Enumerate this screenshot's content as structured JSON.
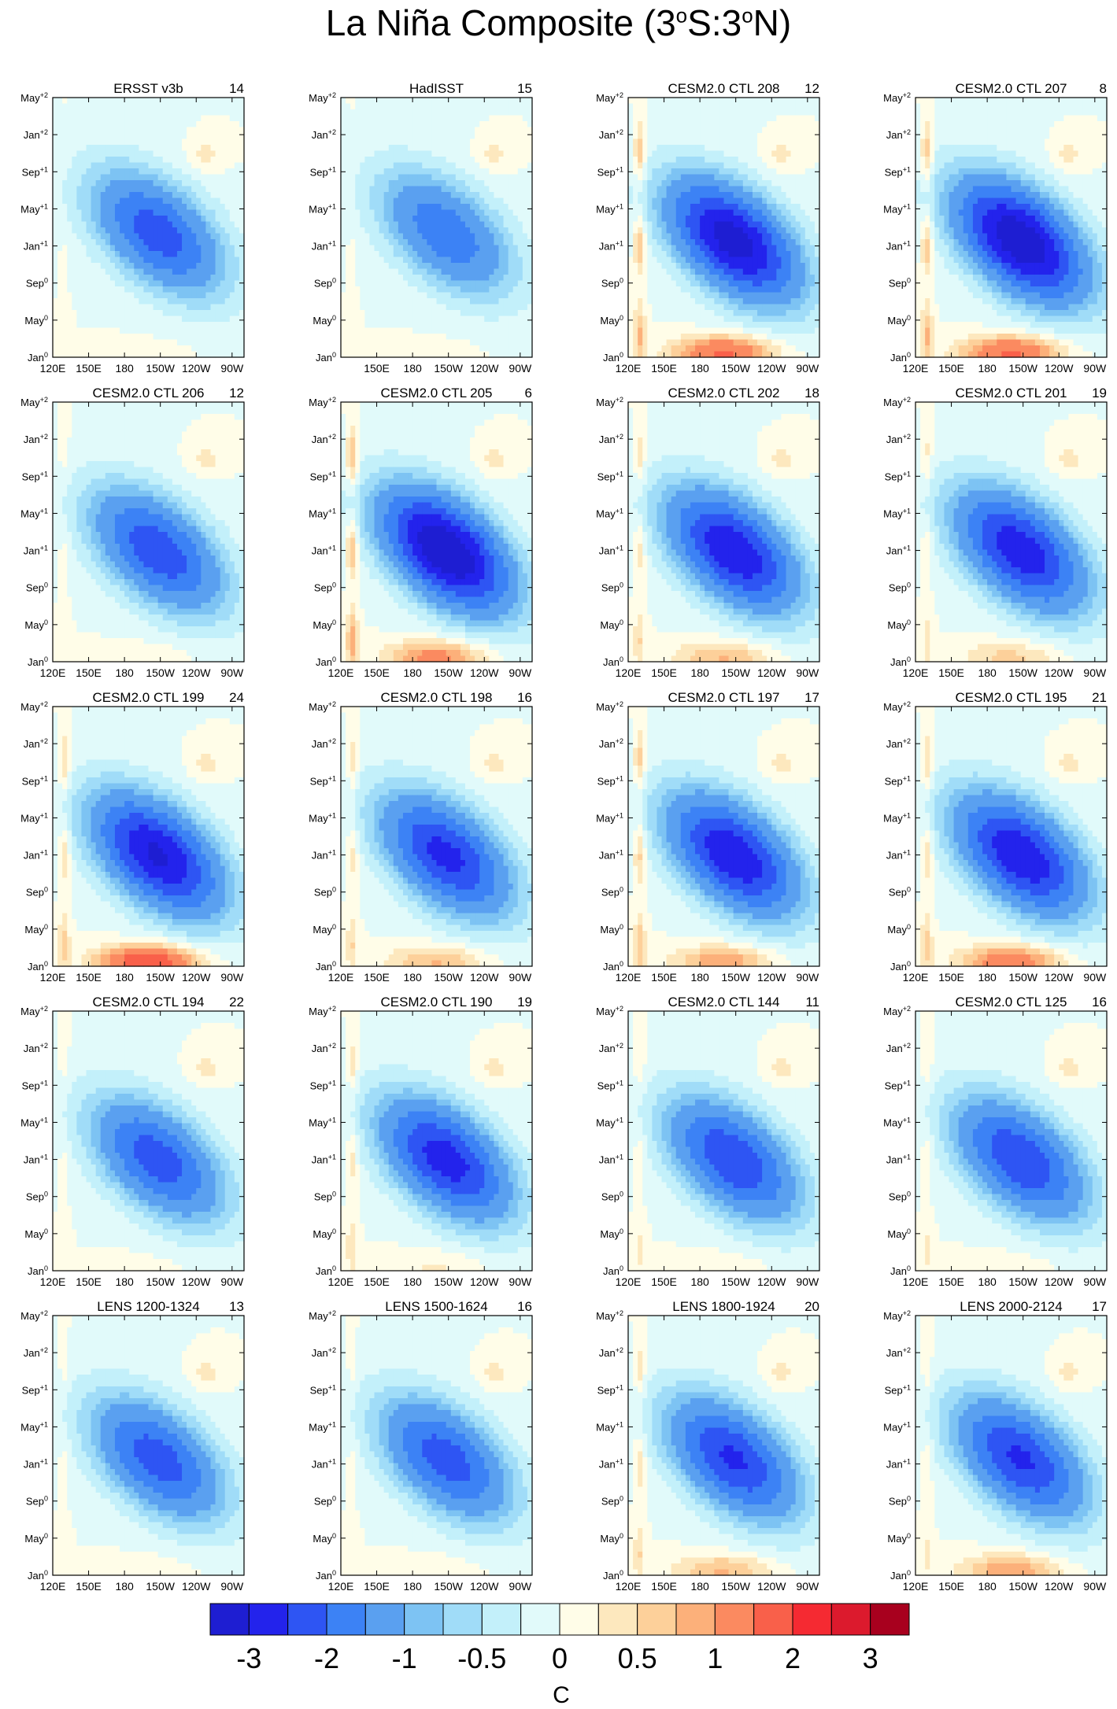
{
  "title": {
    "prefix": "La Niña Composite (3",
    "deg1": "o",
    "mid": "S:3",
    "deg2": "o",
    "suffix": "N)"
  },
  "chart_data": {
    "type": "heatmap",
    "description_axes": {
      "x": {
        "label": "",
        "ticks": [
          "120E",
          "150E",
          "180",
          "150W",
          "120W",
          "90W"
        ],
        "lon_range": [
          120,
          280
        ]
      },
      "y": {
        "label": "",
        "ticks": [
          {
            "base": "Jan",
            "sup": "0"
          },
          {
            "base": "May",
            "sup": "0"
          },
          {
            "base": "Sep",
            "sup": "0"
          },
          {
            "base": "Jan",
            "sup": "+1"
          },
          {
            "base": "May",
            "sup": "+1"
          },
          {
            "base": "Sep",
            "sup": "+1"
          },
          {
            "base": "Jan",
            "sup": "+2"
          },
          {
            "base": "May",
            "sup": "+2"
          }
        ]
      }
    },
    "panels": [
      {
        "title": "ERSST v3b",
        "count": "14"
      },
      {
        "title": "HadISST",
        "count": "15"
      },
      {
        "title": "CESM2.0 CTL 208",
        "count": "12"
      },
      {
        "title": "CESM2.0 CTL 207",
        "count": "8"
      },
      {
        "title": "CESM2.0 CTL 206",
        "count": "12"
      },
      {
        "title": "CESM2.0 CTL 205",
        "count": "6"
      },
      {
        "title": "CESM2.0 CTL 202",
        "count": "18"
      },
      {
        "title": "CESM2.0 CTL 201",
        "count": "19"
      },
      {
        "title": "CESM2.0 CTL 199",
        "count": "24"
      },
      {
        "title": "CESM2.0 CTL 198",
        "count": "16"
      },
      {
        "title": "CESM2.0 CTL 197",
        "count": "17"
      },
      {
        "title": "CESM2.0 CTL 195",
        "count": "21"
      },
      {
        "title": "CESM2.0 CTL 194",
        "count": "22"
      },
      {
        "title": "CESM2.0 CTL 190",
        "count": "19"
      },
      {
        "title": "CESM2.0 CTL 144",
        "count": "11"
      },
      {
        "title": "CESM2.0 CTL 125",
        "count": "16"
      },
      {
        "title": "LENS 1200-1324",
        "count": "13"
      },
      {
        "title": "LENS 1500-1624",
        "count": "16"
      },
      {
        "title": "LENS 1800-1924",
        "count": "20"
      },
      {
        "title": "LENS 2000-2124",
        "count": "17"
      }
    ],
    "colorbar": {
      "unit": "C",
      "colors": [
        "#1e1ed2",
        "#2323ec",
        "#2e55f3",
        "#3c82f5",
        "#5aa0f0",
        "#7dc3f3",
        "#a0dcf8",
        "#c3f0fa",
        "#e1fafa",
        "#fffde8",
        "#fde8be",
        "#fdd09a",
        "#fcb07a",
        "#fb8a60",
        "#f9604a",
        "#f52a32",
        "#dc1a2d",
        "#a8001e"
      ],
      "labels": [
        "-3",
        "-2",
        "-1",
        "-0.5",
        "0",
        "0.5",
        "1",
        "2",
        "3"
      ]
    }
  }
}
